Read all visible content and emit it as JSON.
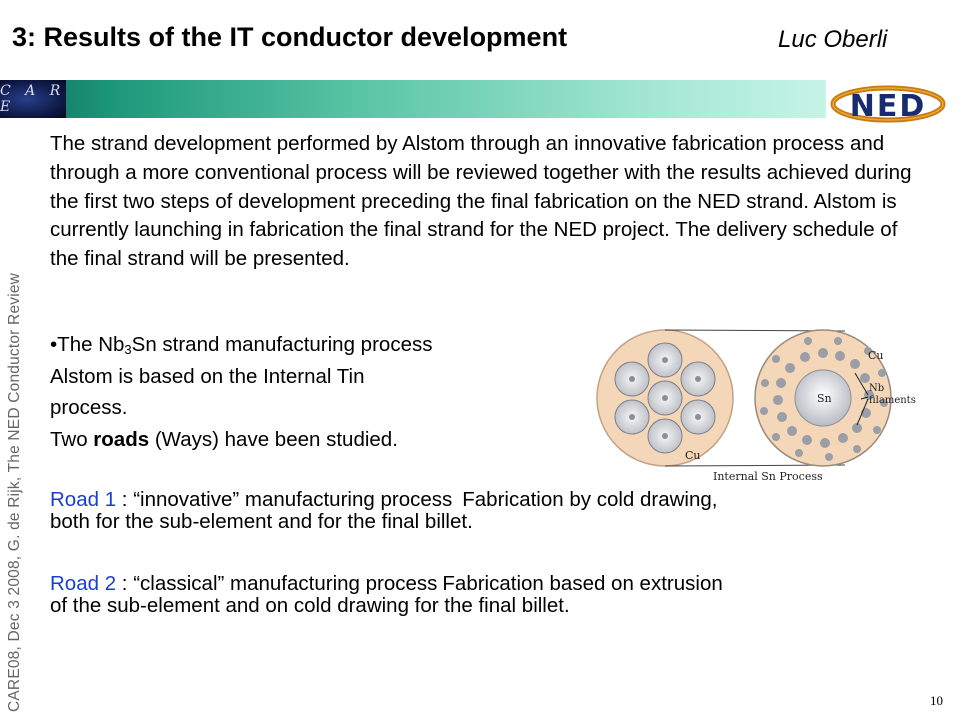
{
  "slide": {
    "title": "3: Results of the IT conductor development",
    "author": "Luc Oberli",
    "side_note": "CARE08, Dec 3 2008, G. de Rijk, The NED Conductor Review",
    "page_number": "10"
  },
  "logos": {
    "left": "C A R E",
    "right": "NED"
  },
  "intro_paragraph": "The strand development performed by Alstom through an innovative fabrication process and through a more conventional process will be reviewed together with the results achieved during the first two steps of development preceding the final fabrication on the NED strand. Alstom is currently launching in fabrication the final strand for the NED project. The delivery schedule of the final strand will be presented.",
  "bullet": {
    "prefix": "•The Nb",
    "subscript": "3",
    "suffix": "Sn strand manufacturing process",
    "line2": "Alstom is based on the Internal Tin",
    "line3": "process.",
    "line4_pre": "Two ",
    "line4_bold": "roads",
    "line4_post": " (Ways) have been studied."
  },
  "figure": {
    "label_cu_top": "Cu",
    "label_sn": "Sn",
    "label_nb_line1": "Nb",
    "label_nb_line2": "filaments",
    "label_cu_bottom": "Cu",
    "caption": "Internal Sn Process"
  },
  "roads": [
    {
      "label": "Road 1",
      "sep": " : ",
      "desc": "“innovative” manufacturing process",
      "detail_line1": "Fabrication by cold drawing,",
      "detail_line2": "both for the sub-element and for the final billet."
    },
    {
      "label": "Road 2",
      "sep": " : ",
      "desc": "“classical” manufacturing process",
      "detail_line1": "Fabrication based on extrusion",
      "detail_line2": "of the sub-element and on cold drawing for the final billet."
    }
  ]
}
